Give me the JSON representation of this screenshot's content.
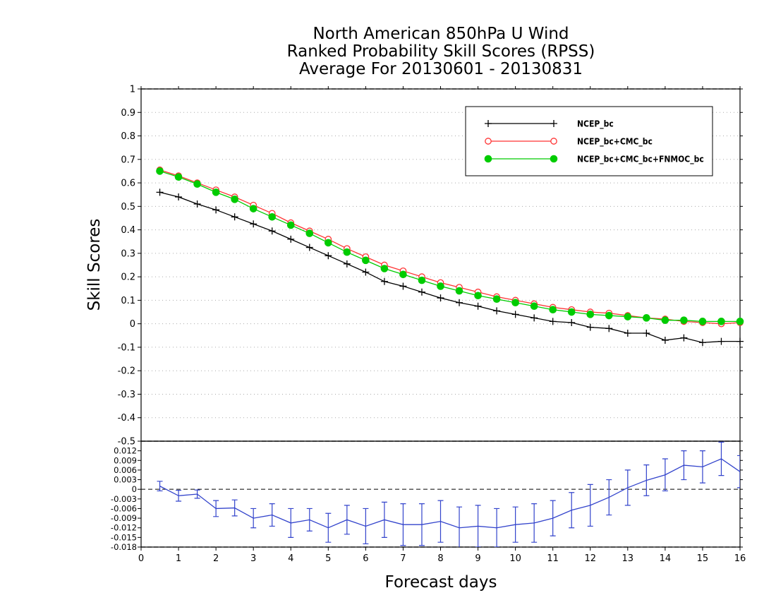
{
  "title": {
    "line1": "North American 850hPa U Wind",
    "line2": "Ranked Probability Skill Scores (RPSS)",
    "line3": "Average For 20130601 - 20130831"
  },
  "chart_data": [
    {
      "type": "line",
      "title": "North American 850hPa U Wind Ranked Probability Skill Scores (RPSS) Average For 20130601 - 20130831",
      "xlabel": "Forecast days",
      "ylabel": "Skill Scores",
      "xlim": [
        0,
        16
      ],
      "ylim": [
        -0.5,
        1
      ],
      "y_ticks": [
        "-0.5",
        "-0.4",
        "-0.3",
        "-0.2",
        "-0.1",
        "0",
        "0.1",
        "0.2",
        "0.3",
        "0.4",
        "0.5",
        "0.6",
        "0.7",
        "0.8",
        "0.9",
        "1"
      ],
      "grid": true,
      "legend_position": "top-right",
      "x": [
        0.5,
        1,
        1.5,
        2,
        2.5,
        3,
        3.5,
        4,
        4.5,
        5,
        5.5,
        6,
        6.5,
        7,
        7.5,
        8,
        8.5,
        9,
        9.5,
        10,
        10.5,
        11,
        11.5,
        12,
        12.5,
        13,
        13.5,
        14,
        14.5,
        15,
        15.5,
        16
      ],
      "series": [
        {
          "name": "NCEP_bc",
          "color": "#000000",
          "marker": "plus",
          "values": [
            0.56,
            0.54,
            0.51,
            0.485,
            0.455,
            0.425,
            0.395,
            0.36,
            0.325,
            0.29,
            0.255,
            0.22,
            0.18,
            0.16,
            0.135,
            0.11,
            0.09,
            0.075,
            0.055,
            0.04,
            0.025,
            0.01,
            0.005,
            -0.015,
            -0.02,
            -0.04,
            -0.04,
            -0.07,
            -0.06,
            -0.08,
            -0.075,
            -0.075
          ]
        },
        {
          "name": "NCEP_bc+CMC_bc",
          "color": "#ff3333",
          "marker": "open-circle",
          "values": [
            0.655,
            0.63,
            0.6,
            0.57,
            0.54,
            0.505,
            0.47,
            0.43,
            0.395,
            0.36,
            0.32,
            0.285,
            0.25,
            0.225,
            0.2,
            0.175,
            0.155,
            0.135,
            0.115,
            0.1,
            0.085,
            0.07,
            0.06,
            0.05,
            0.045,
            0.035,
            0.025,
            0.02,
            0.01,
            0.005,
            0.0,
            0.005
          ]
        },
        {
          "name": "NCEP_bc+CMC_bc+FNMOC_bc",
          "color": "#00cc00",
          "marker": "filled-circle",
          "values": [
            0.65,
            0.625,
            0.595,
            0.56,
            0.53,
            0.49,
            0.455,
            0.42,
            0.385,
            0.345,
            0.305,
            0.27,
            0.235,
            0.21,
            0.185,
            0.16,
            0.14,
            0.12,
            0.105,
            0.09,
            0.075,
            0.06,
            0.05,
            0.04,
            0.035,
            0.03,
            0.025,
            0.015,
            0.015,
            0.01,
            0.01,
            0.01
          ]
        }
      ]
    },
    {
      "type": "line",
      "xlabel": "Forecast days",
      "xlim": [
        0,
        16
      ],
      "x_ticks": [
        "0",
        "1",
        "2",
        "3",
        "4",
        "5",
        "6",
        "7",
        "8",
        "9",
        "10",
        "11",
        "12",
        "13",
        "14",
        "15",
        "16"
      ],
      "ylim": [
        -0.018,
        0.015
      ],
      "y_ticks": [
        "-0.018",
        "-0.015",
        "-0.012",
        "-0.009",
        "-0.006",
        "-0.003",
        "0",
        "0.003",
        "0.006",
        "0.009",
        "0.012"
      ],
      "grid": false,
      "zero_line": "dashed",
      "x": [
        0.5,
        1,
        1.5,
        2,
        2.5,
        3,
        3.5,
        4,
        4.5,
        5,
        5.5,
        6,
        6.5,
        7,
        7.5,
        8,
        8.5,
        9,
        9.5,
        10,
        10.5,
        11,
        11.5,
        12,
        12.5,
        13,
        13.5,
        14,
        14.5,
        15,
        15.5,
        16
      ],
      "series": [
        {
          "color": "#3344cc",
          "marker": "error-bar",
          "values": [
            0.001,
            -0.002,
            -0.0015,
            -0.006,
            -0.0058,
            -0.009,
            -0.008,
            -0.0105,
            -0.0095,
            -0.012,
            -0.0095,
            -0.0115,
            -0.0095,
            -0.011,
            -0.011,
            -0.01,
            -0.012,
            -0.0115,
            -0.012,
            -0.011,
            -0.0105,
            -0.009,
            -0.0065,
            -0.005,
            -0.0025,
            0.0005,
            0.0028,
            0.0045,
            0.0075,
            0.007,
            0.0095,
            0.0055
          ],
          "error": [
            0.0015,
            0.0017,
            0.0013,
            0.0025,
            0.0025,
            0.003,
            0.0035,
            0.0045,
            0.0035,
            0.0045,
            0.0045,
            0.0055,
            0.0055,
            0.0065,
            0.0065,
            0.0065,
            0.0065,
            0.0065,
            0.006,
            0.0055,
            0.006,
            0.0055,
            0.0055,
            0.0065,
            0.0055,
            0.0055,
            0.0048,
            0.005,
            0.0045,
            0.005,
            0.0052,
            0.005
          ]
        }
      ]
    }
  ]
}
